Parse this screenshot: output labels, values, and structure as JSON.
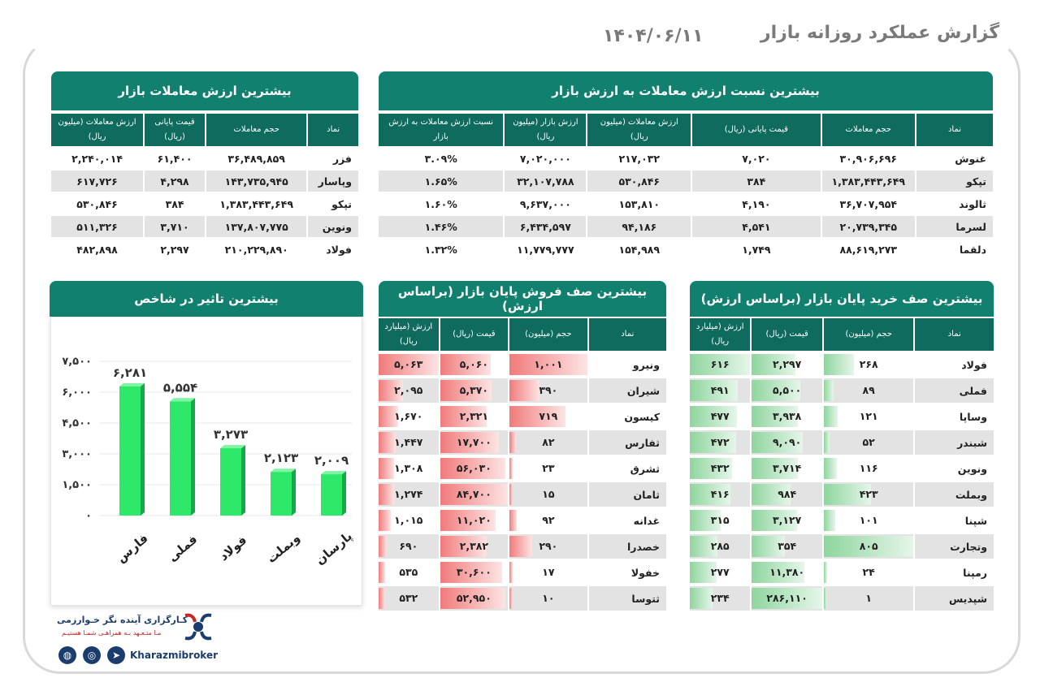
{
  "header": {
    "title": "گزارش عملکرد روزانه بازار",
    "date": "۱۴۰۴/۰۶/۱۱"
  },
  "top_value": {
    "title": "بیشترین ارزش معاملات بازار",
    "columns": [
      "نماد",
      "حجم معاملات",
      "قیمت پایانی (ریال)",
      "ارزش معاملات (میلیون ریال)"
    ],
    "rows": [
      [
        "فزر",
        "۳۶,۴۸۹,۸۵۹",
        "۶۱,۴۰۰",
        "۲,۲۴۰,۰۱۴"
      ],
      [
        "وپاسار",
        "۱۴۳,۷۳۵,۹۴۵",
        "۴,۲۹۸",
        "۶۱۷,۷۲۶"
      ],
      [
        "تپکو",
        "۱,۳۸۳,۴۴۳,۶۴۹",
        "۳۸۴",
        "۵۳۰,۸۴۶"
      ],
      [
        "ونوین",
        "۱۳۷,۸۰۷,۷۷۵",
        "۳,۷۱۰",
        "۵۱۱,۳۲۶"
      ],
      [
        "فولاد",
        "۲۱۰,۲۲۹,۸۹۰",
        "۲,۲۹۷",
        "۴۸۲,۸۹۸"
      ]
    ]
  },
  "top_ratio": {
    "title": "بیشترین نسبت ارزش معاملات به ارزش بازار",
    "columns": [
      "نماد",
      "حجم معاملات",
      "قیمت پایانی (ریال)",
      "ارزش معاملات (میلیون ریال)",
      "ارزش بازار (میلیون ریال)",
      "نسبت ارزش معاملات به ارزش بازار"
    ],
    "rows": [
      [
        "غنوش",
        "۳۰,۹۰۶,۶۹۶",
        "۷,۰۲۰",
        "۲۱۷,۰۳۲",
        "۷,۰۲۰,۰۰۰",
        "۳.۰۹%"
      ],
      [
        "تپکو",
        "۱,۳۸۳,۴۴۳,۶۴۹",
        "۳۸۴",
        "۵۳۰,۸۴۶",
        "۳۲,۱۰۷,۷۸۸",
        "۱.۶۵%"
      ],
      [
        "ثالوند",
        "۳۶,۷۰۷,۹۵۴",
        "۴,۱۹۰",
        "۱۵۳,۸۱۰",
        "۹,۶۳۷,۰۰۰",
        "۱.۶۰%"
      ],
      [
        "لسرما",
        "۲۰,۷۳۹,۳۴۵",
        "۴,۵۴۱",
        "۹۴,۱۸۶",
        "۶,۴۳۴,۵۹۷",
        "۱.۴۶%"
      ],
      [
        "دلقما",
        "۸۸,۶۱۹,۲۷۳",
        "۱,۷۴۹",
        "۱۵۴,۹۸۹",
        "۱۱,۷۷۹,۷۷۷",
        "۱.۳۲%"
      ]
    ]
  },
  "buy_queue": {
    "title": "بیشترین صف خرید پایان بازار (براساس ارزش)",
    "columns": [
      "نماد",
      "حجم (میلیون)",
      "قیمت (ریال)",
      "ارزش (میلیارد ریال)"
    ],
    "rows": [
      {
        "sym": "فولاد",
        "vol": "۲۶۸",
        "price": "۲,۲۹۷",
        "value": "۶۱۶",
        "vol_n": 268,
        "price_n": 2297,
        "value_n": 616
      },
      {
        "sym": "فملی",
        "vol": "۸۹",
        "price": "۵,۵۰۰",
        "value": "۴۹۱",
        "vol_n": 89,
        "price_n": 5500,
        "value_n": 491
      },
      {
        "sym": "وساپا",
        "vol": "۱۲۱",
        "price": "۳,۹۳۸",
        "value": "۴۷۷",
        "vol_n": 121,
        "price_n": 3938,
        "value_n": 477
      },
      {
        "sym": "شبندر",
        "vol": "۵۲",
        "price": "۹,۰۹۰",
        "value": "۴۷۲",
        "vol_n": 52,
        "price_n": 9090,
        "value_n": 472
      },
      {
        "sym": "ونوین",
        "vol": "۱۱۶",
        "price": "۳,۷۱۴",
        "value": "۴۳۲",
        "vol_n": 116,
        "price_n": 3714,
        "value_n": 432
      },
      {
        "sym": "وبملت",
        "vol": "۴۲۳",
        "price": "۹۸۴",
        "value": "۴۱۶",
        "vol_n": 423,
        "price_n": 984,
        "value_n": 416
      },
      {
        "sym": "شپنا",
        "vol": "۱۰۱",
        "price": "۳,۱۲۷",
        "value": "۳۱۵",
        "vol_n": 101,
        "price_n": 3127,
        "value_n": 315
      },
      {
        "sym": "وتجارت",
        "vol": "۸۰۵",
        "price": "۳۵۴",
        "value": "۲۸۵",
        "vol_n": 805,
        "price_n": 354,
        "value_n": 285
      },
      {
        "sym": "رمپنا",
        "vol": "۲۴",
        "price": "۱۱,۳۸۰",
        "value": "۲۷۷",
        "vol_n": 24,
        "price_n": 11380,
        "value_n": 277
      },
      {
        "sym": "شپدیس",
        "vol": "۱",
        "price": "۲۸۶,۱۱۰",
        "value": "۲۳۴",
        "vol_n": 1,
        "price_n": 286110,
        "value_n": 234
      }
    ]
  },
  "sell_queue": {
    "title": "بیشترین صف فروش پایان بازار (براساس ارزش)",
    "columns": [
      "نماد",
      "حجم (میلیون)",
      "قیمت (ریال)",
      "ارزش (میلیارد ریال)"
    ],
    "rows": [
      {
        "sym": "ونیرو",
        "vol": "۱,۰۰۱",
        "price": "۵,۰۶۰",
        "value": "۵,۰۶۳",
        "vol_n": 1001,
        "price_n": 5060,
        "value_n": 5063
      },
      {
        "sym": "شیران",
        "vol": "۳۹۰",
        "price": "۵,۳۷۰",
        "value": "۲,۰۹۵",
        "vol_n": 390,
        "price_n": 5370,
        "value_n": 2095
      },
      {
        "sym": "کیسون",
        "vol": "۷۱۹",
        "price": "۲,۳۲۱",
        "value": "۱,۶۷۰",
        "vol_n": 719,
        "price_n": 2321,
        "value_n": 1670
      },
      {
        "sym": "ثفارس",
        "vol": "۸۲",
        "price": "۱۷,۷۰۰",
        "value": "۱,۴۴۷",
        "vol_n": 82,
        "price_n": 17700,
        "value_n": 1447
      },
      {
        "sym": "ثشرق",
        "vol": "۲۳",
        "price": "۵۶,۰۳۰",
        "value": "۱,۳۰۸",
        "vol_n": 23,
        "price_n": 56030,
        "value_n": 1308
      },
      {
        "sym": "ثامان",
        "vol": "۱۵",
        "price": "۸۴,۷۰۰",
        "value": "۱,۲۷۴",
        "vol_n": 15,
        "price_n": 84700,
        "value_n": 1274
      },
      {
        "sym": "غدانه",
        "vol": "۹۲",
        "price": "۱۱,۰۲۰",
        "value": "۱,۰۱۵",
        "vol_n": 92,
        "price_n": 11020,
        "value_n": 1015
      },
      {
        "sym": "خصدرا",
        "vol": "۲۹۰",
        "price": "۲,۳۸۲",
        "value": "۶۹۰",
        "vol_n": 290,
        "price_n": 2382,
        "value_n": 690
      },
      {
        "sym": "خفولا",
        "vol": "۱۷",
        "price": "۳۰,۶۰۰",
        "value": "۵۳۵",
        "vol_n": 17,
        "price_n": 30600,
        "value_n": 535
      },
      {
        "sym": "ثتوسا",
        "vol": "۱۰",
        "price": "۵۲,۹۵۰",
        "value": "۵۳۲",
        "vol_n": 10,
        "price_n": 52950,
        "value_n": 532
      }
    ]
  },
  "chart_data": {
    "type": "bar",
    "title": "بیشترین تاثیر در شاخص",
    "categories": [
      "فارس",
      "فملی",
      "فولاد",
      "وبملت",
      "پارسان"
    ],
    "values": [
      6281,
      5554,
      3273,
      2123,
      2009
    ],
    "value_labels": [
      "۶,۲۸۱",
      "۵,۵۵۴",
      "۳,۲۷۳",
      "۲,۱۲۳",
      "۲,۰۰۹"
    ],
    "y_ticks": [
      0,
      1500,
      3000,
      4500,
      6000,
      7500
    ],
    "y_tick_labels": [
      "۰",
      "۱,۵۰۰",
      "۳,۰۰۰",
      "۴,۵۰۰",
      "۶,۰۰۰",
      "۷,۵۰۰"
    ],
    "ylim": [
      0,
      7500
    ],
    "xlabel": "",
    "ylabel": "",
    "grid": true,
    "bar_color": "#2ee86a"
  },
  "footer": {
    "company": "کـارگزاری آینده نگر خـوارزمی",
    "slogan": "مـا متـعـهد بـه همراهـی شمـا هستیـم",
    "brand": "Kharazmibroker"
  },
  "icons": [
    "web-icon",
    "instagram-icon",
    "telegram-icon",
    "logo-icon"
  ]
}
